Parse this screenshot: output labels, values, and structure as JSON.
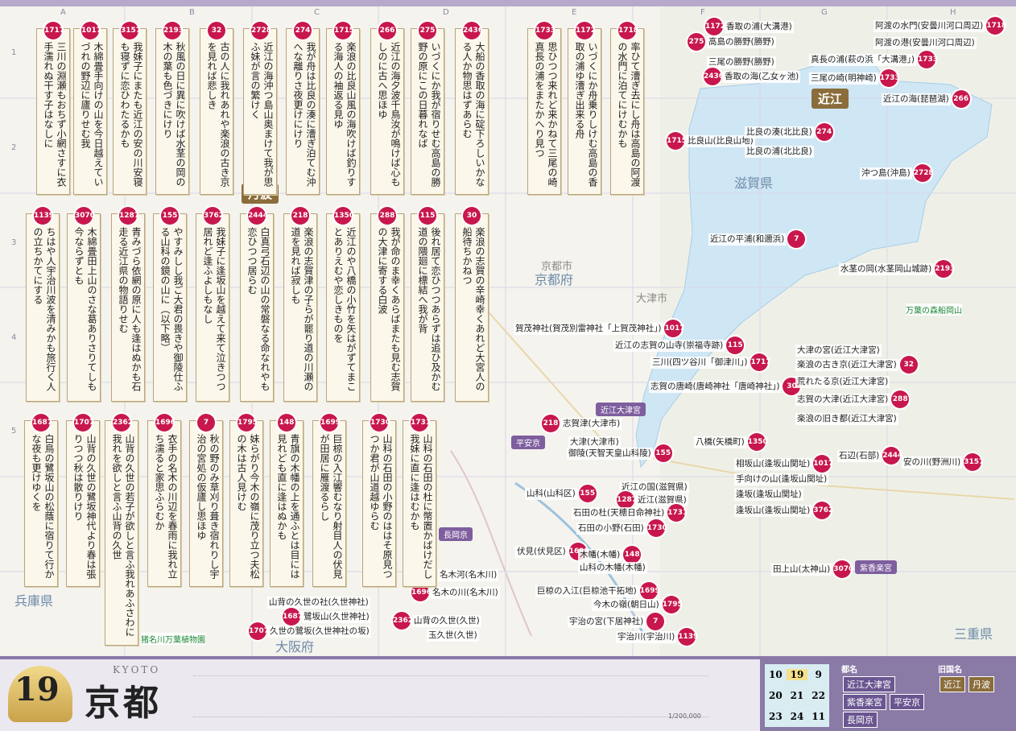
{
  "grid": {
    "columns": [
      "A",
      "B",
      "C",
      "D",
      "E",
      "F",
      "G",
      "H"
    ],
    "rows": [
      "1",
      "2",
      "3",
      "4",
      "5"
    ]
  },
  "poem_cards": [
    {
      "number": "1717",
      "text": "三川の淵瀬もおちず小網さすに衣手濡れぬ干す子はなしに"
    },
    {
      "number": "1017",
      "text": "木綿畳手向けの山を今日越えていづれの野辺に廬りせむ我"
    },
    {
      "number": "3157",
      "text": "我妹子にまたも近江の安の川安寝も寝ずに恋ひわたるかも"
    },
    {
      "number": "2193",
      "text": "秋風の日に異に吹けば水茎の岡の木の葉も色づきにけり"
    },
    {
      "number": "32",
      "text": "古の人に我れあれや楽浪の古き京を見れば悲しき"
    },
    {
      "number": "2728",
      "text": "近江の海沖つ島山奥まけて我が思ふ妹が言の繁けく"
    },
    {
      "number": "274",
      "text": "我が舟は比良の湊に漕ぎ泊てむ沖へな離りさ夜更けにけり"
    },
    {
      "number": "1715",
      "text": "楽浪の比良山風の海吹けば釣りする海人の袖返る見ゆ"
    },
    {
      "number": "266",
      "text": "近江の海夕波千鳥汝が鳴けば心もしのに古へ思ほゆ"
    },
    {
      "number": "275",
      "text": "いづくにか我が宿りせむ高島の勝野の原にこの日暮れなば"
    },
    {
      "number": "2436",
      "text": "大船の香取の海に碇下ろしいかなる人か物思はずあらむ"
    },
    {
      "number": "1733",
      "text": "思ひつつ来れど来かねて三尾の崎真長の浦をまたかへり見つ"
    },
    {
      "number": "1172",
      "text": "いづくにか舟乗りしけむ高島の香取の浦ゆ漕ぎ出来る舟"
    },
    {
      "number": "1718",
      "text": "率ひて漕ぎ去にし舟は高島の阿渡の水門に泊てにけむかも"
    },
    {
      "number": "1139",
      "text": "ちはや人宇治川波を清みかも旅行く人の立ちかてにする"
    },
    {
      "number": "3070",
      "text": "木綿畳田上山のさな葛ありさりてしも今ならずとも"
    },
    {
      "number": "1287",
      "text": "青みづら依網の原に人も逢はぬかも石走る近江県の物語りせむ"
    },
    {
      "number": "155",
      "text": "やすみしし我ご大君の畏きや御陵仕ふる山科の鏡の山に（以下略）"
    },
    {
      "number": "3762",
      "text": "我妹子に逢坂山を越えて来て泣きつつ居れど逢ふよしもなし"
    },
    {
      "number": "2444",
      "text": "白真弓石辺の山の常磐なる命なれやも恋ひつつ居らむ"
    },
    {
      "number": "218",
      "text": "楽浪の志賀津の子らが罷り道の川瀬の道を見れば寂しも"
    },
    {
      "number": "1350",
      "text": "近江のや八橋の小竹を矢はがずてまことありえむや恋しきものを"
    },
    {
      "number": "288",
      "text": "我が命のま幸くあらばまたも見む志賀の大津に寄する白波"
    },
    {
      "number": "115",
      "text": "後れ居て恋ひつつあらずは追ひ及かむ道の隈廻に標結へ我が背"
    },
    {
      "number": "30",
      "text": "楽浪の志賀の辛崎幸くあれど大宮人の船待ちかねつ"
    },
    {
      "number": "1687",
      "text": "白鳥の鷺坂山の松蔭に宿りて行かな夜も更けゆくを"
    },
    {
      "number": "1707",
      "text": "山背の久世の鷺坂神代より春は張りつつ秋は散りけり"
    },
    {
      "number": "2362",
      "text": "山背の久世の若子が欲しと言ふ我れあふさわに我れを欲しと言ふ山背の久世"
    },
    {
      "number": "1696",
      "text": "衣手の名木の川辺を春雨に我れ立ち濡ると家思ふらむか"
    },
    {
      "number": "7",
      "text": "秋の野のみ草刈り葺き宿れりし宇治の宮処の仮廬し思ほゆ"
    },
    {
      "number": "1795",
      "text": "妹らがり今木の嶺に茂り立つ夫松の木は古人見けむ"
    },
    {
      "number": "148",
      "text": "青旗の木幡の上を通ふとは目には見れども直に逢はぬかも"
    },
    {
      "number": "1699",
      "text": "巨椋の入江響むなり射目人の伏見が田居に雁渡るらし"
    },
    {
      "number": "1730",
      "text": "山科の石田の小野のははそ原見つつか君が山道越ゆらむ"
    },
    {
      "number": "1731",
      "text": "山科の石田の杜に幣置かばけだし我妹に直に逢はむかも"
    }
  ],
  "regions": [
    "近江",
    "丹波",
    "滋賀県",
    "京都府",
    "京都市",
    "大阪府",
    "兵庫県",
    "三重県",
    "大津市",
    "万葉の森船岡山",
    "猪名川万葉植物園",
    "近江大津宮",
    "平安京",
    "長岡京",
    "紫香楽宮"
  ],
  "places": [
    {
      "name": "香取の浦(大溝港)",
      "poem": "1172"
    },
    {
      "name": "高島の勝野(勝野)",
      "poem": "275"
    },
    {
      "name": "三尾の勝野(勝野)"
    },
    {
      "name": "香取の海(乙女ヶ池)",
      "poem": "2436"
    },
    {
      "name": "阿渡の水門(安曇川河口周辺)",
      "poem": "1718"
    },
    {
      "name": "阿渡の港(安曇川河口周辺)"
    },
    {
      "name": "真長の浦(萩の浜「大溝港」)",
      "poem": "1733"
    },
    {
      "name": "三尾の崎(明神崎)",
      "poem": "1733"
    },
    {
      "name": "近江の海(琵琶湖)",
      "poem": "266"
    },
    {
      "name": "比良山(比良山地)",
      "poem": "1715"
    },
    {
      "name": "比良の湊(北比良)",
      "poem": "274"
    },
    {
      "name": "比良の浦(北比良)"
    },
    {
      "name": "沖つ島(沖島)",
      "poem": "2728"
    },
    {
      "name": "近江の平浦(和邇浜)",
      "poem": "7"
    },
    {
      "name": "水茎の岡(水茎岡山城跡)",
      "poem": "2193"
    },
    {
      "name": "賀茂神社(賀茂別雷神社「上賀茂神社」)",
      "poem": "1017"
    },
    {
      "name": "近江の志賀の山寺(崇福寺跡)",
      "poem": "115"
    },
    {
      "name": "三川(四ツ谷川「御津川」)",
      "poem": "1717"
    },
    {
      "name": "志賀の唐崎(唐崎神社「唐崎神社」)",
      "poem": "30"
    },
    {
      "name": "大津の宮(近江大津宮)"
    },
    {
      "name": "楽浪の古き京(近江大津宮)",
      "poem": "32"
    },
    {
      "name": "荒れたる京(近江大津宮)"
    },
    {
      "name": "志賀の大津(近江大津宮)",
      "poem": "288"
    },
    {
      "name": "楽浪の旧き都(近江大津宮)"
    },
    {
      "name": "志賀津(大津市)",
      "poem": "218"
    },
    {
      "name": "大津(大津市)"
    },
    {
      "name": "御陵(天智天皇山科陵)",
      "poem": "155"
    },
    {
      "name": "八橋(矢橋町)",
      "poem": "1350"
    },
    {
      "name": "石辺(石部)",
      "poem": "2444"
    },
    {
      "name": "安の川(野洲川)",
      "poem": "3157"
    },
    {
      "name": "相坂山(逢坂山関址)",
      "poem": "1017"
    },
    {
      "name": "手向けの山(逢坂山関址)"
    },
    {
      "name": "逢坂(逢坂山関址)"
    },
    {
      "name": "逢坂山(逢坂山関址)",
      "poem": "3762"
    },
    {
      "name": "山科(山科区)",
      "poem": "155"
    },
    {
      "name": "近江の国(滋賀県)"
    },
    {
      "name": "近江(滋賀県)",
      "poem": "1287"
    },
    {
      "name": "石田の杜(天穂日命神社)",
      "poem": "1731"
    },
    {
      "name": "石田の小野(石田)",
      "poem": "1730"
    },
    {
      "name": "伏見(伏見区)",
      "poem": "1699"
    },
    {
      "name": "木幡(木幡)",
      "poem": "148"
    },
    {
      "name": "山科の木幡(木幡)"
    },
    {
      "name": "名木河(名木川)"
    },
    {
      "name": "名木の川(名木川)",
      "poem": "1696"
    },
    {
      "name": "巨椋の入江(巨椋池干拓地)",
      "poem": "1699"
    },
    {
      "name": "今木の嶺(朝日山)",
      "poem": "1795"
    },
    {
      "name": "宇治の宮(下居神社)",
      "poem": "7"
    },
    {
      "name": "宇治川(宇治川)",
      "poem": "1139"
    },
    {
      "name": "山背の久世の社(久世神社)"
    },
    {
      "name": "鷺坂山(久世神社)",
      "poem": "1687"
    },
    {
      "name": "久世の鷺坂(久世神社の坂)",
      "poem": "1707"
    },
    {
      "name": "山背の久世(久世)",
      "poem": "2362"
    },
    {
      "name": "玉久世(久世)"
    },
    {
      "name": "田上山(太神山)",
      "poem": "3070"
    }
  ],
  "footer": {
    "number": "19",
    "title": "京都",
    "romaji": "KYOTO",
    "scale": "1/200,000",
    "index_map": [
      "10",
      "19",
      "9",
      "20",
      "21",
      "22",
      "23",
      "24",
      "11"
    ],
    "capitals_heading": "都名",
    "capitals": [
      "近江大津宮",
      "紫香楽宮",
      "平安京",
      "長岡京"
    ],
    "provinces_heading": "旧国名",
    "provinces": [
      "近江",
      "丹波"
    ]
  }
}
